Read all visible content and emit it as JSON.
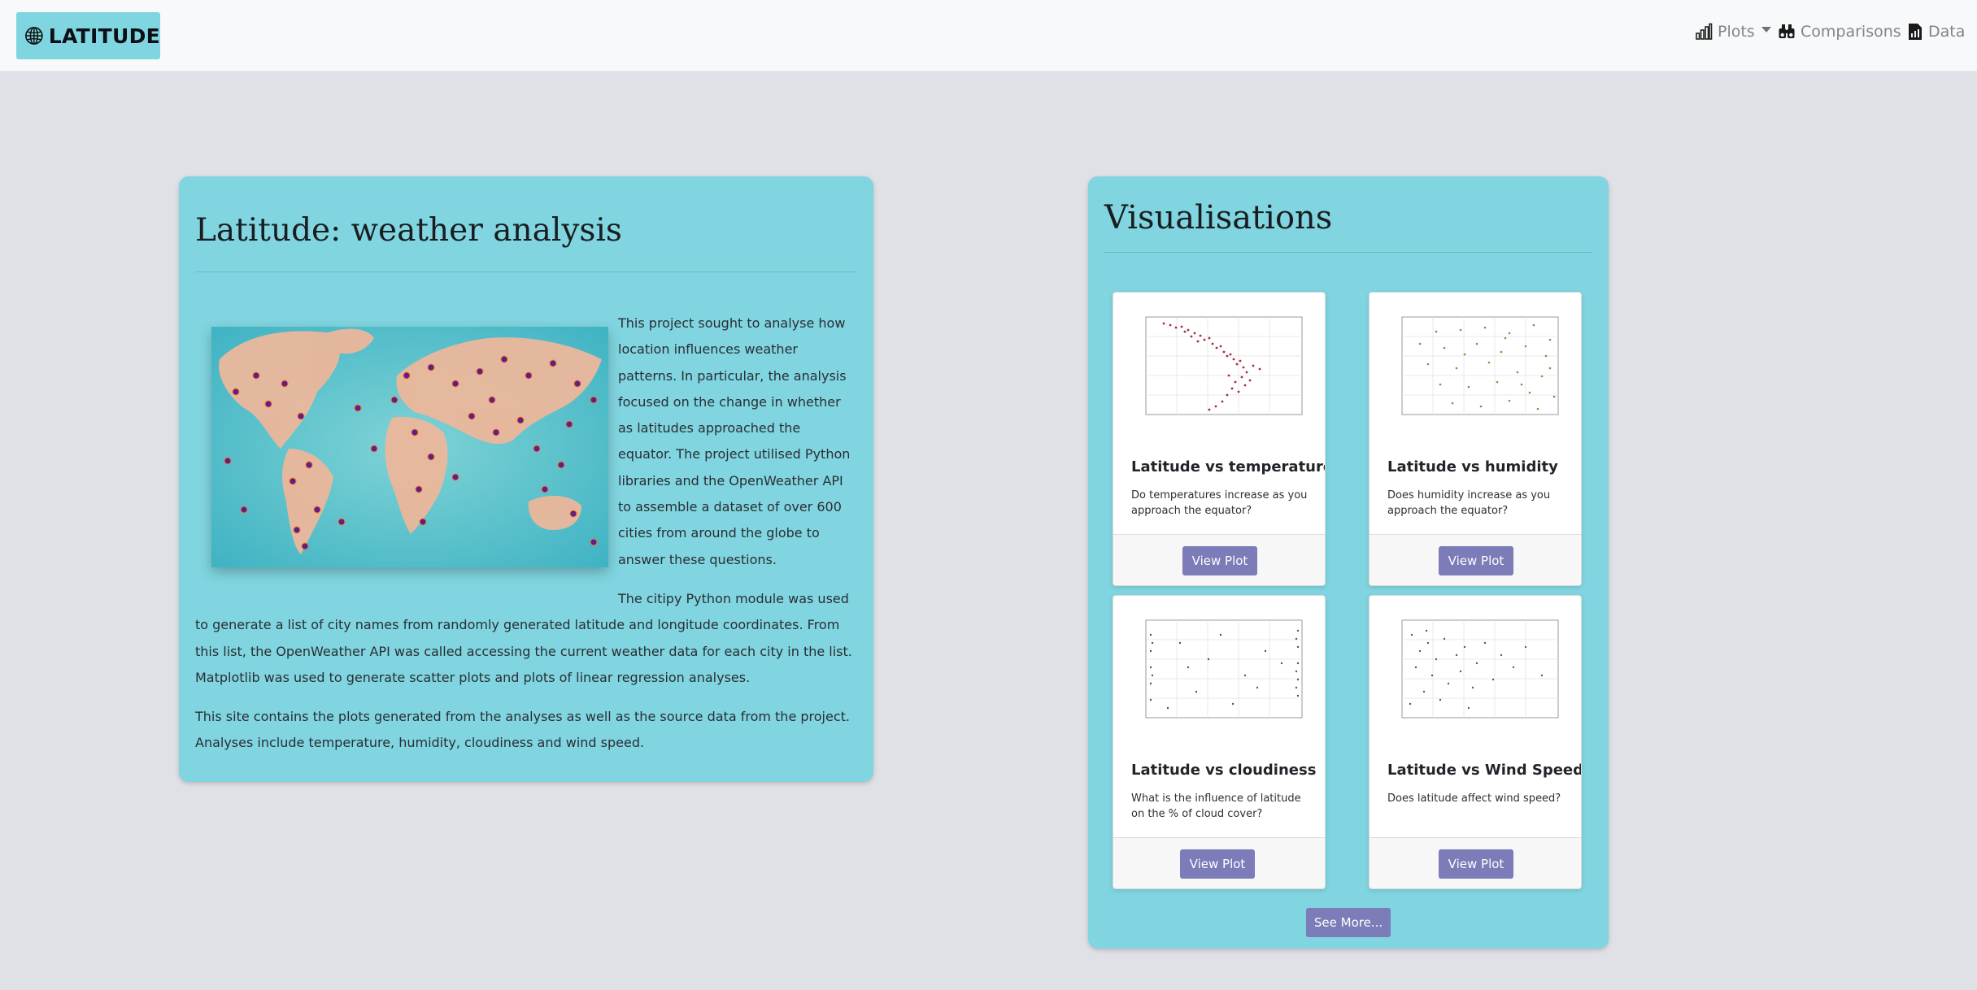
{
  "brand": {
    "name": "LATITUDE",
    "icon": "globe-icon"
  },
  "nav": {
    "plots": {
      "label": "Plots",
      "icon": "bar-chart-icon"
    },
    "comparisons": {
      "label": "Comparisons",
      "icon": "binoculars-icon"
    },
    "data": {
      "label": "Data",
      "icon": "chart-file-icon"
    }
  },
  "intro": {
    "title": "Latitude: weather analysis",
    "paragraphs": [
      "This project sought to analyse how location influences weather patterns. In particular, the analysis focused on the change in whether as latitudes approached the equator. The project utilised Python libraries and the OpenWeather API to assemble a dataset of over 600 cities from around the globe to answer these questions.",
      "The citipy Python module was used to generate a list of city names from randomly generated latitude and longitude coordinates. From this list, the OpenWeather API was called accessing the current weather data for each city in the list. Matplotlib was used to generate scatter plots and plots of linear regression analyses.",
      "This site contains the plots generated from the analyses as well as the source data from the project. Analyses include temperature, humidity, cloudiness and wind speed."
    ]
  },
  "visualisations": {
    "title": "Visualisations",
    "cards": [
      {
        "title": "Latitude vs temperature",
        "text": "Do temperatures increase as you approach the equator?",
        "button": "View Plot"
      },
      {
        "title": "Latitude vs humidity",
        "text": "Does humidity increase as you approach the equator?",
        "button": "View Plot"
      },
      {
        "title": "Latitude vs cloudiness",
        "text": "What is the influence of latitude on the % of cloud cover?",
        "button": "View Plot"
      },
      {
        "title": "Latitude vs Wind Speed",
        "text": "Does latitude affect wind speed?",
        "button": "View Plot"
      }
    ],
    "see_more": "See More..."
  },
  "colors": {
    "panel": "#80d5e0",
    "button": "#7b7cb8",
    "page_bg": "#dfe1e6",
    "navbar_bg": "#f8f9fa",
    "scatter_temperature": "#a52a3a",
    "scatter_humidity": "#8a8a3e",
    "scatter_cloudiness": "#3c5a7a",
    "scatter_wind": "#555a62"
  }
}
